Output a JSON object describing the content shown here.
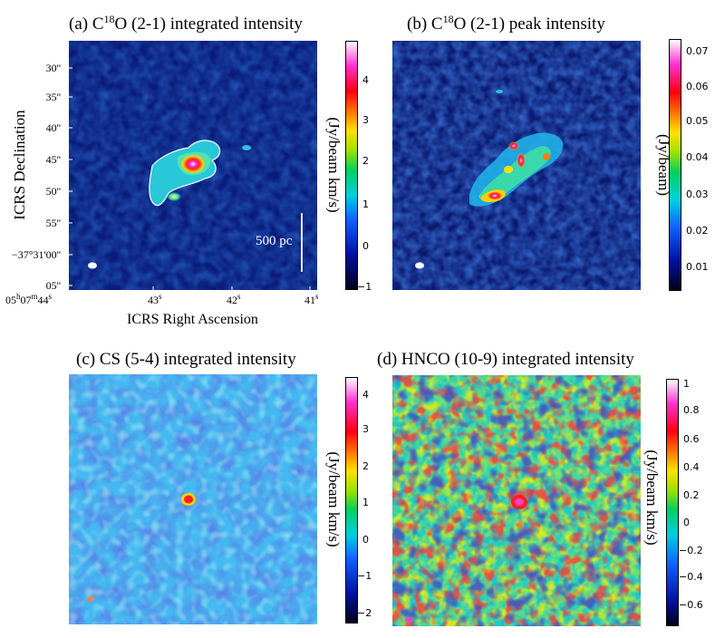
{
  "figure": {
    "panels": [
      {
        "id": "a",
        "title_prefix": "(a) C",
        "title_sup": "18",
        "title_suffix": "O (2-1) integrated intensity",
        "colorbar_label": "(Jy/beam km/s)",
        "colorbar_ticks": [
          "4",
          "3",
          "2",
          "1",
          "0",
          "−1"
        ],
        "scalebar_label": "500 pc"
      },
      {
        "id": "b",
        "title_prefix": "(b) C",
        "title_sup": "18",
        "title_suffix": "O (2-1) peak intensity",
        "colorbar_label": "(Jy/beam)",
        "colorbar_ticks": [
          "0.07",
          "0.06",
          "0.05",
          "0.04",
          "0.03",
          "0.02",
          "0.01"
        ]
      },
      {
        "id": "c",
        "title": "(c) CS (5-4) integrated intensity",
        "colorbar_label": "(Jy/beam km/s)",
        "colorbar_ticks": [
          "4",
          "3",
          "2",
          "1",
          "0",
          "−1",
          "−2"
        ]
      },
      {
        "id": "d",
        "title": "(d) HNCO (10-9) integrated intensity",
        "colorbar_label": "(Jy/beam km/s)",
        "colorbar_ticks": [
          "1",
          "0.8",
          "0.6",
          "0.4",
          "0.2",
          "0",
          "−0.2",
          "−0.4",
          "−0.6"
        ]
      }
    ],
    "axes": {
      "ylabel": "ICRS Declination",
      "xlabel": "ICRS Right Ascension",
      "dec_ticks": [
        "30''",
        "35''",
        "40''",
        "45''",
        "50''",
        "55''",
        "−37°31'00''",
        "05''"
      ],
      "ra_ticks": [
        {
          "h": "05",
          "hs": "h",
          "m": "07",
          "ms": "m",
          "s": "44",
          "ss": "s"
        },
        {
          "s": "43",
          "ss": "s"
        },
        {
          "s": "42",
          "ss": "s"
        },
        {
          "s": "41",
          "ss": "s"
        }
      ]
    }
  }
}
